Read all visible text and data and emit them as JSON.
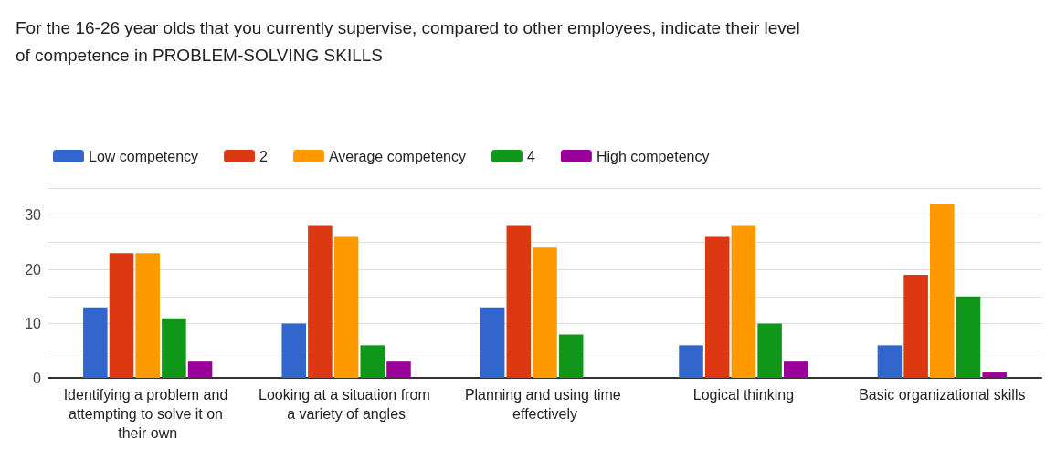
{
  "chart_data": {
    "type": "bar",
    "title": "For the 16-26 year olds that you currently supervise, compared to other employees, indicate their level of competence in PROBLEM-SOLVING SKILLS",
    "categories": [
      "Identifying a problem and attempting to solve it on their own",
      "Looking at a situation from a variety of angles",
      "Planning and using time effectively",
      "Logical thinking",
      "Basic organizational skills"
    ],
    "series": [
      {
        "name": "Low competency",
        "color": "#3366cc",
        "values": [
          13,
          10,
          13,
          6,
          6
        ]
      },
      {
        "name": "2",
        "color": "#dc3912",
        "values": [
          23,
          28,
          28,
          26,
          19
        ]
      },
      {
        "name": "Average competency",
        "color": "#ff9900",
        "values": [
          23,
          26,
          24,
          28,
          32
        ]
      },
      {
        "name": "4",
        "color": "#109618",
        "values": [
          11,
          6,
          8,
          10,
          15
        ]
      },
      {
        "name": "High competency",
        "color": "#990099",
        "values": [
          3,
          3,
          0,
          3,
          1
        ]
      }
    ],
    "ylim": [
      0,
      35
    ],
    "yticks": [
      0,
      {
        "value": 5,
        "label": null
      },
      10,
      {
        "value": 15,
        "label": null
      },
      20,
      {
        "value": 25,
        "label": null
      },
      30,
      {
        "value": 35,
        "label": null
      }
    ],
    "grid": "y",
    "legend": "top left"
  }
}
